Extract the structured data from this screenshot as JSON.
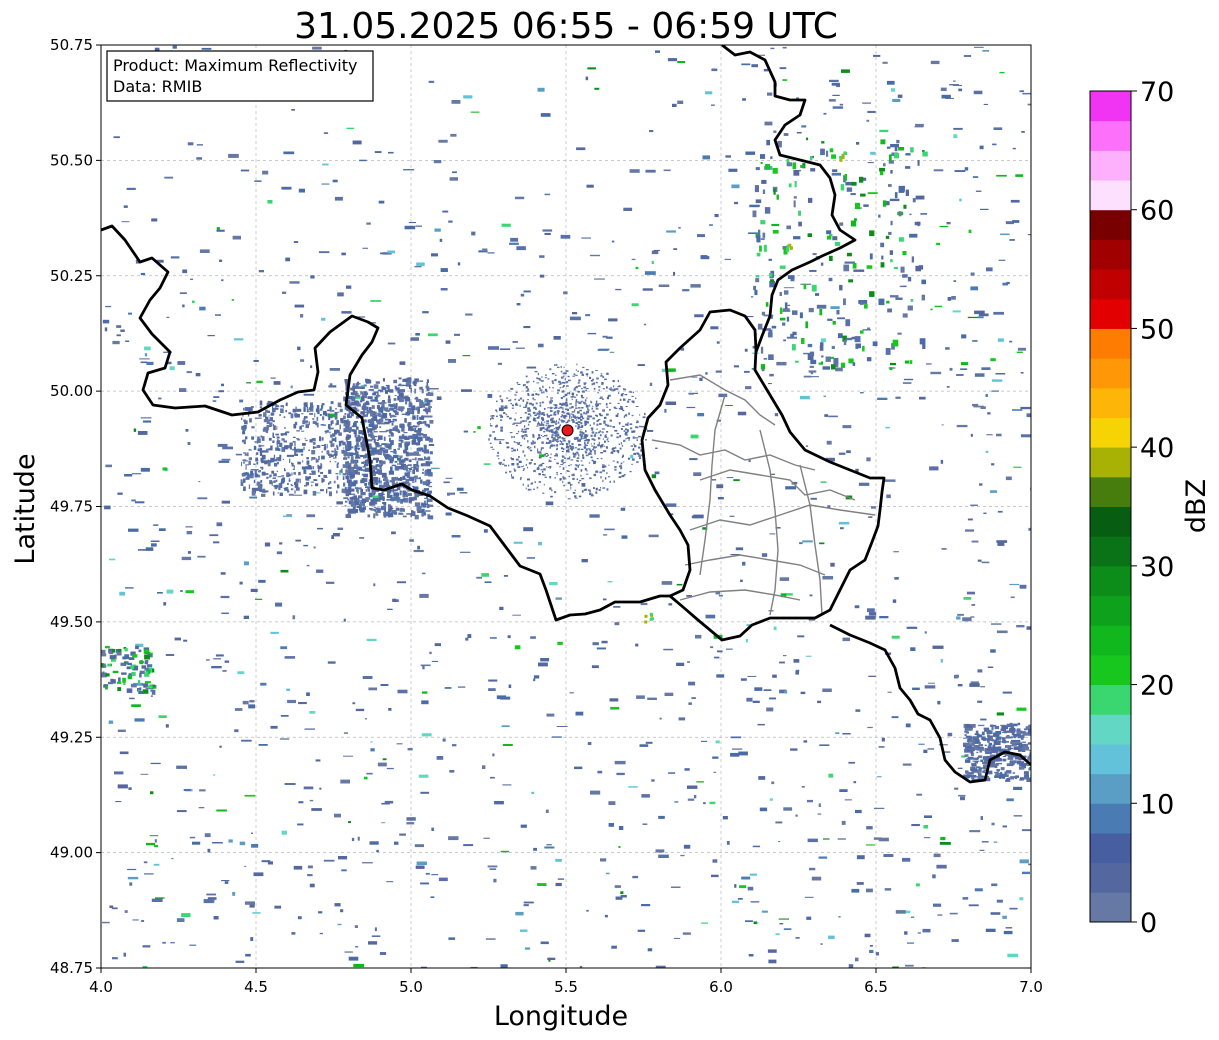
{
  "title": "31.05.2025 06:55 - 06:59 UTC",
  "info_box": {
    "product_line": "Product: Maximum Reflectivity",
    "data_line": "Data: RMIB"
  },
  "axes": {
    "xlabel": "Longitude",
    "ylabel": "Latitude",
    "xlim": [
      4.0,
      7.0
    ],
    "ylim": [
      48.75,
      50.75
    ],
    "x_ticks": [
      "4.0",
      "4.5",
      "5.0",
      "5.5",
      "6.0",
      "6.5",
      "7.0"
    ],
    "y_ticks": [
      "48.75",
      "49.00",
      "49.25",
      "49.50",
      "49.75",
      "50.00",
      "50.25",
      "50.50",
      "50.75"
    ],
    "grid": true
  },
  "radar_site": {
    "lon": 5.505,
    "lat": 49.915,
    "color": "#e8191b"
  },
  "colorbar": {
    "label": "dBZ",
    "ticks": [
      "0",
      "10",
      "20",
      "30",
      "40",
      "50",
      "60",
      "70"
    ],
    "range": [
      0,
      70
    ],
    "colors": [
      "#6679a5",
      "#54689f",
      "#475fa0",
      "#4a7bb3",
      "#5a9ec6",
      "#62c2d9",
      "#62d8c4",
      "#3ad770",
      "#18c71d",
      "#10b81e",
      "#0ea21c",
      "#0c8d1a",
      "#0a7317",
      "#075e12",
      "#467d0c",
      "#a8b204",
      "#f6d304",
      "#fdb507",
      "#ff9707",
      "#ff7c02",
      "#e20000",
      "#c00000",
      "#a10000",
      "#780000",
      "#fde0fe",
      "#fdb0fb",
      "#fc70fa",
      "#f134f3"
    ]
  },
  "chart_data": {
    "type": "heatmap",
    "title": "31.05.2025 06:55 - 06:59 UTC",
    "xlabel": "Longitude",
    "ylabel": "Latitude",
    "xlim": [
      4.0,
      7.0
    ],
    "ylim": [
      48.75,
      50.75
    ],
    "colorbar_label": "dBZ",
    "colorbar_range": [
      0,
      70
    ],
    "annotation": [
      "Product: Maximum Reflectivity",
      "Data: RMIB"
    ],
    "radar_site": {
      "lon": 5.505,
      "lat": 49.915
    },
    "echo_areas": [
      {
        "lon": 4.9,
        "lat": 49.9,
        "dbz": 5
      },
      {
        "lon": 6.85,
        "lat": 49.22,
        "dbz": 5
      },
      {
        "lon": 4.05,
        "lat": 49.4,
        "dbz": 18
      },
      {
        "lon": 6.35,
        "lat": 50.33,
        "dbz": 25
      },
      {
        "lon": 6.2,
        "lat": 50.2,
        "dbz": 22
      },
      {
        "lon": 5.8,
        "lat": 49.5,
        "dbz": 28
      },
      {
        "lon": 6.4,
        "lat": 50.5,
        "dbz": 35
      }
    ]
  },
  "borders": {
    "national_color": "#000000",
    "regional_color": "#808080"
  }
}
